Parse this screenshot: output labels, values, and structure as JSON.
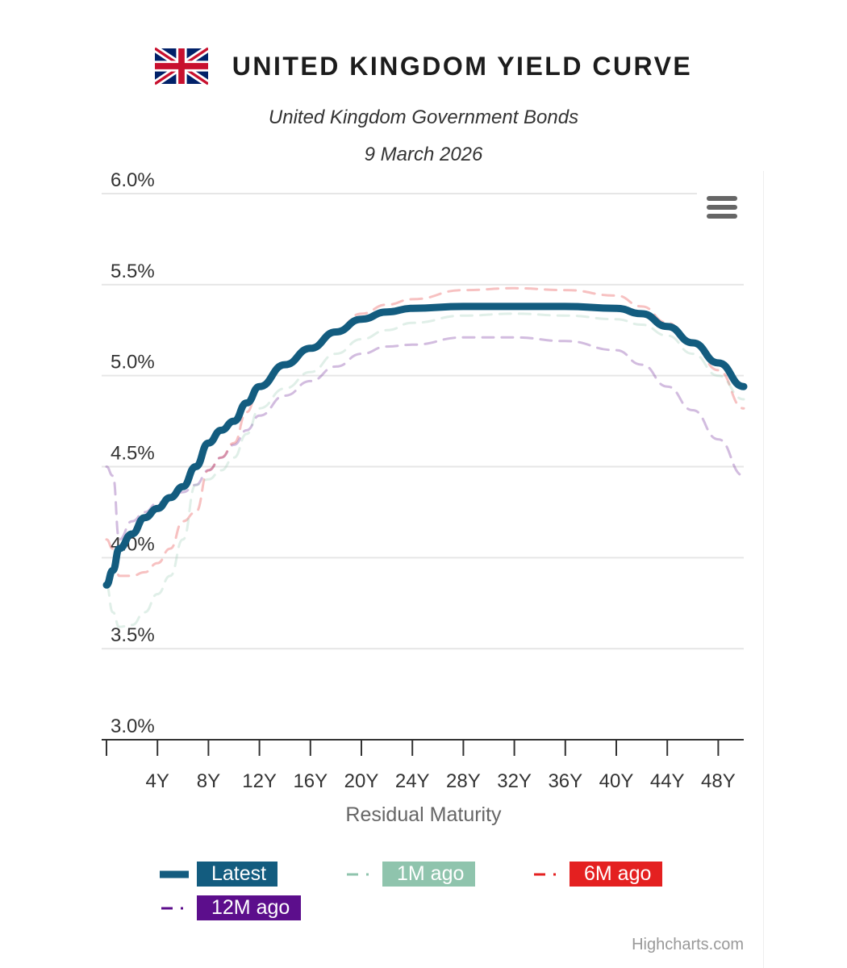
{
  "header": {
    "title": "UNITED KINGDOM YIELD CURVE",
    "subtitle": "United Kingdom Government Bonds",
    "date": "9 March 2026",
    "flag_icon": "uk-flag-icon"
  },
  "menu": {
    "icon": "hamburger-menu-icon"
  },
  "credits": "Highcharts.com",
  "colors": {
    "latest": "#135c7f",
    "one_month": "#8fc4ad",
    "six_month": "#e42020",
    "twelve_month": "#5c0e8c",
    "grid": "#e6e6e6",
    "axis": "#333333"
  },
  "chart_data": {
    "type": "line",
    "title": "UNITED KINGDOM YIELD CURVE",
    "subtitle": "United Kingdom Government Bonds",
    "xlabel": "Residual Maturity",
    "ylabel": "",
    "xlim": [
      0,
      50
    ],
    "ylim": [
      3.0,
      6.0
    ],
    "y_ticks": [
      3.0,
      3.5,
      4.0,
      4.5,
      5.0,
      5.5,
      6.0
    ],
    "y_tick_labels": [
      "3.0%",
      "3.5%",
      "4.0%",
      "4.5%",
      "5.0%",
      "5.5%",
      "6.0%"
    ],
    "x_ticks": [
      4,
      8,
      12,
      16,
      20,
      24,
      28,
      32,
      36,
      40,
      44,
      48
    ],
    "x_tick_labels": [
      "4Y",
      "8Y",
      "12Y",
      "16Y",
      "20Y",
      "24Y",
      "28Y",
      "32Y",
      "36Y",
      "40Y",
      "44Y",
      "48Y"
    ],
    "legend_position": "bottom",
    "series": [
      {
        "name": "Latest",
        "key": "latest",
        "dash": "solid",
        "x": [
          0,
          0.5,
          1,
          2,
          3,
          4,
          5,
          6,
          7,
          8,
          9,
          10,
          11,
          12,
          14,
          16,
          18,
          20,
          22,
          24,
          28,
          32,
          36,
          40,
          42,
          44,
          46,
          48,
          50
        ],
        "y": [
          3.85,
          3.93,
          4.05,
          4.13,
          4.22,
          4.27,
          4.33,
          4.39,
          4.5,
          4.63,
          4.7,
          4.75,
          4.85,
          4.94,
          5.06,
          5.15,
          5.24,
          5.31,
          5.35,
          5.37,
          5.38,
          5.38,
          5.38,
          5.37,
          5.34,
          5.27,
          5.18,
          5.07,
          4.94
        ]
      },
      {
        "name": "1M ago",
        "key": "one_month",
        "dash": "longdashdot",
        "x": [
          0,
          0.5,
          1,
          2,
          3,
          4,
          5,
          6,
          7,
          8,
          9,
          10,
          11,
          12,
          14,
          16,
          18,
          20,
          22,
          24,
          28,
          32,
          36,
          40,
          42,
          44,
          46,
          48,
          50
        ],
        "y": [
          3.85,
          3.7,
          3.62,
          3.63,
          3.7,
          3.8,
          3.9,
          4.1,
          4.4,
          4.43,
          4.48,
          4.55,
          4.68,
          4.82,
          4.93,
          5.02,
          5.12,
          5.2,
          5.25,
          5.29,
          5.33,
          5.34,
          5.33,
          5.31,
          5.28,
          5.22,
          5.12,
          5.0,
          4.87
        ]
      },
      {
        "name": "6M ago",
        "key": "six_month",
        "dash": "longdashdot",
        "x": [
          0,
          0.5,
          1,
          2,
          3,
          4,
          5,
          6,
          7,
          8,
          9,
          10,
          11,
          12,
          14,
          16,
          18,
          20,
          22,
          24,
          28,
          32,
          36,
          40,
          42,
          44,
          46,
          48,
          50
        ],
        "y": [
          4.1,
          4.05,
          3.9,
          3.9,
          3.92,
          3.97,
          4.05,
          4.2,
          4.25,
          4.48,
          4.55,
          4.63,
          4.8,
          4.95,
          5.05,
          5.15,
          5.25,
          5.34,
          5.39,
          5.42,
          5.47,
          5.48,
          5.47,
          5.44,
          5.38,
          5.29,
          5.17,
          5.03,
          4.82
        ]
      },
      {
        "name": "12M ago",
        "key": "twelve_month",
        "dash": "longdashdot",
        "x": [
          0,
          0.5,
          1,
          2,
          3,
          4,
          5,
          6,
          7,
          8,
          9,
          10,
          11,
          12,
          14,
          16,
          18,
          20,
          22,
          24,
          28,
          32,
          36,
          40,
          42,
          44,
          46,
          48,
          50
        ],
        "y": [
          4.5,
          4.45,
          4.1,
          4.2,
          4.25,
          4.3,
          4.33,
          4.36,
          4.4,
          4.48,
          4.55,
          4.62,
          4.7,
          4.78,
          4.89,
          4.97,
          5.05,
          5.12,
          5.16,
          5.17,
          5.21,
          5.21,
          5.19,
          5.14,
          5.06,
          4.94,
          4.81,
          4.65,
          4.45
        ]
      }
    ]
  }
}
